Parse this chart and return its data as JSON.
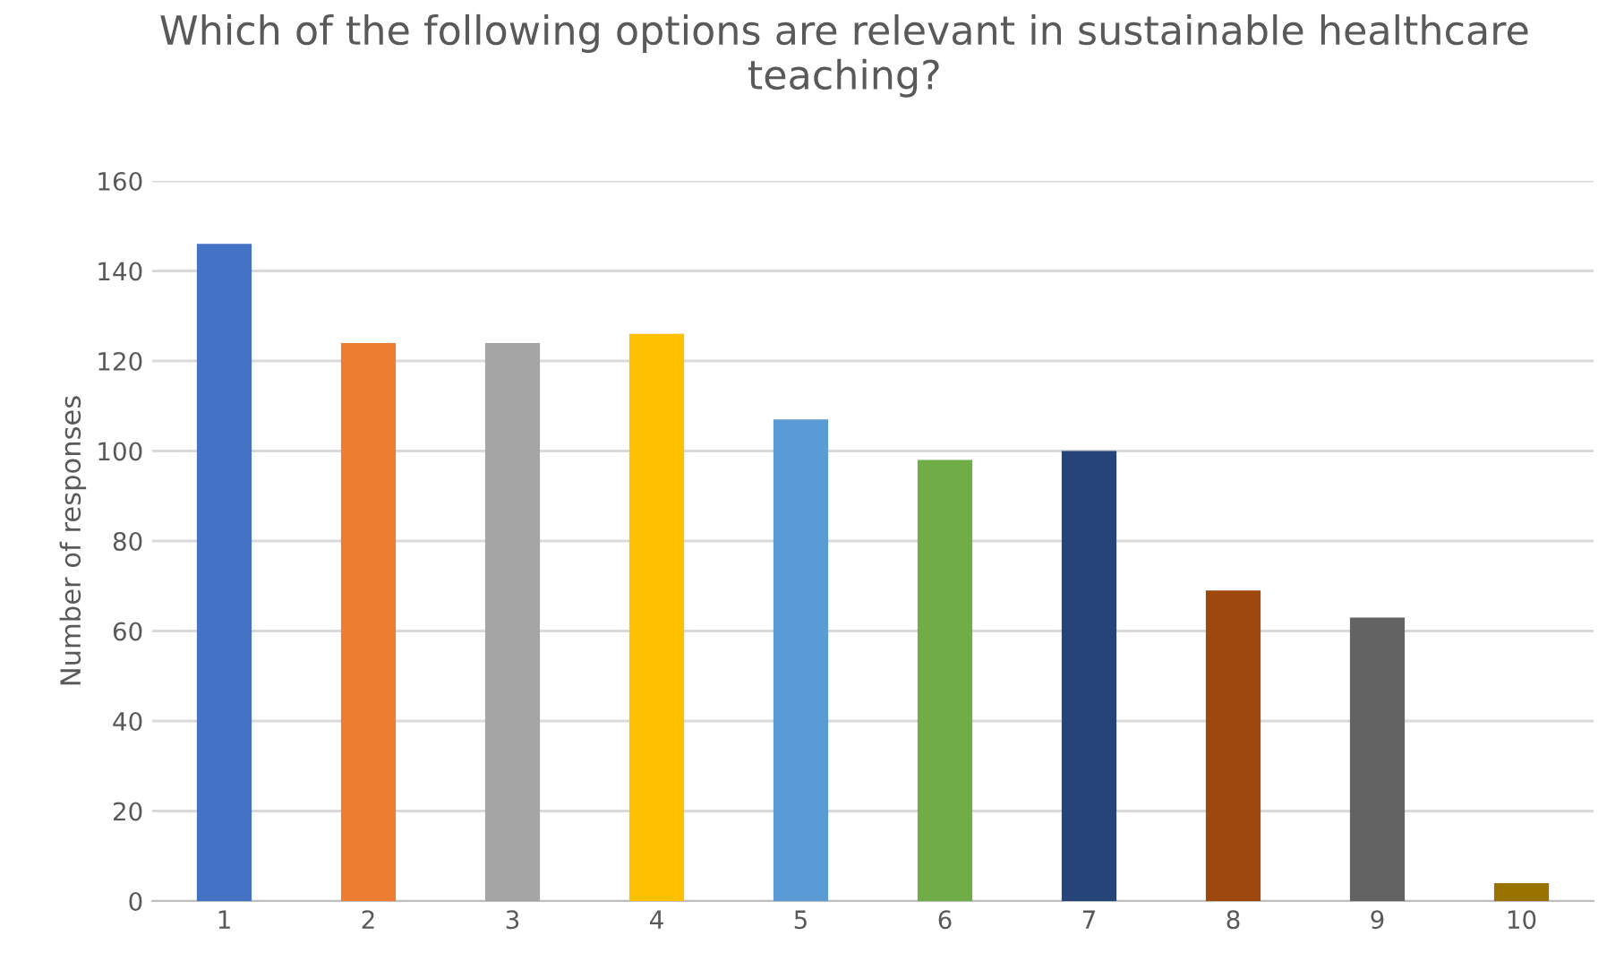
{
  "chart_data": {
    "type": "bar",
    "title": "Which of the following options are relevant in sustainable healthcare teaching?",
    "ylabel": "Number of responses",
    "categories": [
      "1",
      "2",
      "3",
      "4",
      "5",
      "6",
      "7",
      "8",
      "9",
      "10"
    ],
    "values": [
      146,
      124,
      124,
      126,
      107,
      98,
      100,
      69,
      63,
      4
    ],
    "colors": [
      "#4472c4",
      "#ed7d31",
      "#a5a5a5",
      "#ffc000",
      "#5b9bd5",
      "#70ad47",
      "#264478",
      "#9e480e",
      "#636363",
      "#997300"
    ],
    "ylim": [
      0,
      160
    ],
    "yticks": [
      0,
      20,
      40,
      60,
      80,
      100,
      120,
      140,
      160
    ],
    "grid": "y"
  }
}
